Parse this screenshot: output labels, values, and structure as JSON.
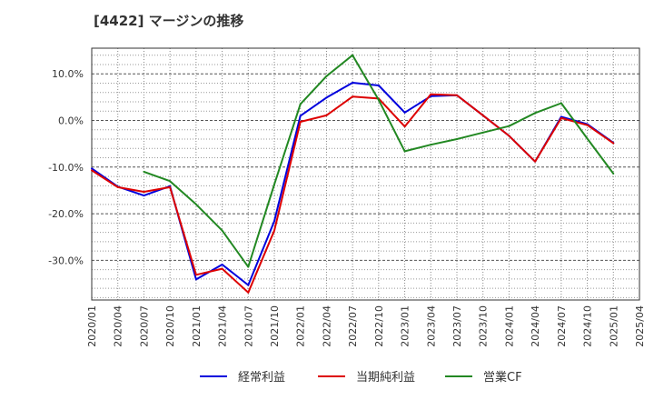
{
  "chart_data": {
    "type": "line",
    "title": "[4422]  マージンの推移",
    "x": [
      "2020/01",
      "2020/04",
      "2020/07",
      "2020/10",
      "2021/01",
      "2021/04",
      "2021/07",
      "2021/10",
      "2022/01",
      "2022/04",
      "2022/07",
      "2022/10",
      "2023/01",
      "2023/04",
      "2023/07",
      "2023/10",
      "2024/01",
      "2024/04",
      "2024/07",
      "2024/10",
      "2025/01",
      "2025/04"
    ],
    "ylim": [
      -38.5,
      15.5
    ],
    "yticks": [
      10,
      0,
      -10,
      -20,
      -30
    ],
    "ytick_labels": [
      "10.0%",
      "0.0%",
      "-10.0%",
      "-20.0%",
      "-30.0%"
    ],
    "grid": true,
    "legend_position": "bottom",
    "series": [
      {
        "name": "経常利益",
        "color": "#0000dd",
        "values": [
          -10.3,
          -14.2,
          -16.1,
          -14.1,
          -34.1,
          -30.9,
          -35.3,
          -21.6,
          1.0,
          4.9,
          8.1,
          7.5,
          1.7,
          5.2,
          5.4,
          1.1,
          -3.3,
          -8.8,
          0.8,
          -0.8,
          -4.8,
          null
        ]
      },
      {
        "name": "当期純利益",
        "color": "#dd0000",
        "values": [
          -10.7,
          -14.3,
          -15.3,
          -14.3,
          -33.1,
          -31.8,
          -36.9,
          -23.6,
          -0.3,
          1.1,
          5.1,
          4.7,
          -1.3,
          5.6,
          5.4,
          1.1,
          -3.3,
          -8.8,
          0.5,
          -1.0,
          -4.9,
          null
        ]
      },
      {
        "name": "営業CF",
        "color": "#228822",
        "values": [
          null,
          null,
          -11.0,
          -13.0,
          -18.0,
          -23.6,
          -31.4,
          -13.7,
          3.5,
          9.5,
          14.0,
          4.4,
          -6.6,
          -5.2,
          -4.0,
          -2.6,
          -1.2,
          1.6,
          3.7,
          -3.9,
          -11.4,
          null
        ]
      }
    ]
  }
}
